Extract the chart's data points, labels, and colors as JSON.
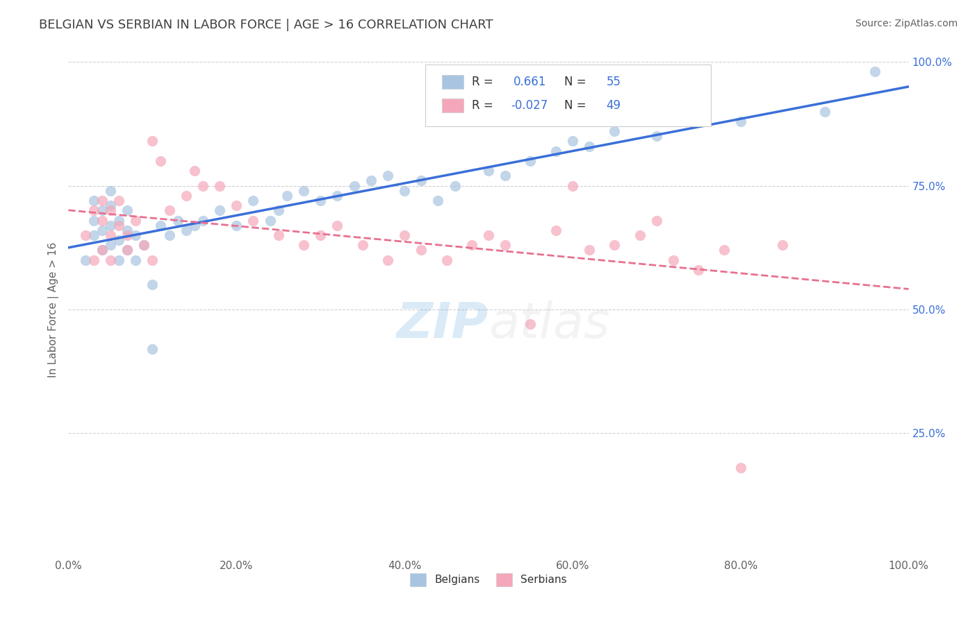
{
  "title": "BELGIAN VS SERBIAN IN LABOR FORCE | AGE > 16 CORRELATION CHART",
  "source_text": "Source: ZipAtlas.com",
  "xlabel": "",
  "ylabel": "In Labor Force | Age > 16",
  "xlim": [
    0.0,
    1.0
  ],
  "ylim": [
    0.0,
    1.0
  ],
  "xtick_labels": [
    "0.0%",
    "20.0%",
    "40.0%",
    "60.0%",
    "80.0%",
    "100.0%"
  ],
  "xtick_vals": [
    0.0,
    0.2,
    0.4,
    0.6,
    0.8,
    1.0
  ],
  "ytick_labels": [
    "25.0%",
    "50.0%",
    "75.0%",
    "100.0%"
  ],
  "ytick_vals": [
    0.25,
    0.5,
    0.75,
    1.0
  ],
  "belgian_color": "#a8c4e0",
  "serbian_color": "#f4a7b9",
  "belgian_line_color": "#3a6fd8",
  "serbian_line_color": "#e87090",
  "belgian_R": 0.661,
  "belgian_N": 55,
  "serbian_R": -0.027,
  "serbian_N": 49,
  "watermark": "ZIPatlas",
  "watermark_color_zip": "#3a8fd8",
  "watermark_color_atlas": "#b0b0b0",
  "background_color": "#ffffff",
  "grid_color": "#d0d0d0",
  "title_color": "#404040",
  "axis_label_color": "#606060",
  "legend_R_color": "#3a6fd8",
  "legend_N_color": "#3a6fd8",
  "belgians_scatter_x": [
    0.02,
    0.03,
    0.03,
    0.03,
    0.04,
    0.04,
    0.04,
    0.05,
    0.05,
    0.05,
    0.05,
    0.06,
    0.06,
    0.06,
    0.07,
    0.07,
    0.07,
    0.08,
    0.08,
    0.09,
    0.1,
    0.1,
    0.11,
    0.12,
    0.13,
    0.14,
    0.15,
    0.16,
    0.18,
    0.2,
    0.22,
    0.24,
    0.25,
    0.26,
    0.28,
    0.3,
    0.32,
    0.34,
    0.36,
    0.38,
    0.4,
    0.42,
    0.44,
    0.46,
    0.5,
    0.52,
    0.55,
    0.58,
    0.6,
    0.62,
    0.65,
    0.7,
    0.8,
    0.9,
    0.96
  ],
  "belgians_scatter_y": [
    0.6,
    0.65,
    0.68,
    0.72,
    0.62,
    0.66,
    0.7,
    0.63,
    0.67,
    0.71,
    0.74,
    0.6,
    0.64,
    0.68,
    0.62,
    0.66,
    0.7,
    0.6,
    0.65,
    0.63,
    0.42,
    0.55,
    0.67,
    0.65,
    0.68,
    0.66,
    0.67,
    0.68,
    0.7,
    0.67,
    0.72,
    0.68,
    0.7,
    0.73,
    0.74,
    0.72,
    0.73,
    0.75,
    0.76,
    0.77,
    0.74,
    0.76,
    0.72,
    0.75,
    0.78,
    0.77,
    0.8,
    0.82,
    0.84,
    0.83,
    0.86,
    0.85,
    0.88,
    0.9,
    0.98
  ],
  "serbians_scatter_x": [
    0.02,
    0.03,
    0.03,
    0.04,
    0.04,
    0.04,
    0.05,
    0.05,
    0.05,
    0.06,
    0.06,
    0.07,
    0.07,
    0.08,
    0.09,
    0.1,
    0.11,
    0.12,
    0.14,
    0.15,
    0.16,
    0.18,
    0.2,
    0.22,
    0.25,
    0.28,
    0.3,
    0.32,
    0.35,
    0.38,
    0.4,
    0.42,
    0.45,
    0.48,
    0.5,
    0.52,
    0.55,
    0.58,
    0.6,
    0.62,
    0.65,
    0.68,
    0.7,
    0.72,
    0.75,
    0.78,
    0.8,
    0.85,
    0.1
  ],
  "serbians_scatter_y": [
    0.65,
    0.7,
    0.6,
    0.68,
    0.72,
    0.62,
    0.65,
    0.7,
    0.6,
    0.67,
    0.72,
    0.65,
    0.62,
    0.68,
    0.63,
    0.84,
    0.8,
    0.7,
    0.73,
    0.78,
    0.75,
    0.75,
    0.71,
    0.68,
    0.65,
    0.63,
    0.65,
    0.67,
    0.63,
    0.6,
    0.65,
    0.62,
    0.6,
    0.63,
    0.65,
    0.63,
    0.47,
    0.66,
    0.75,
    0.62,
    0.63,
    0.65,
    0.68,
    0.6,
    0.58,
    0.62,
    0.18,
    0.63,
    0.6
  ]
}
